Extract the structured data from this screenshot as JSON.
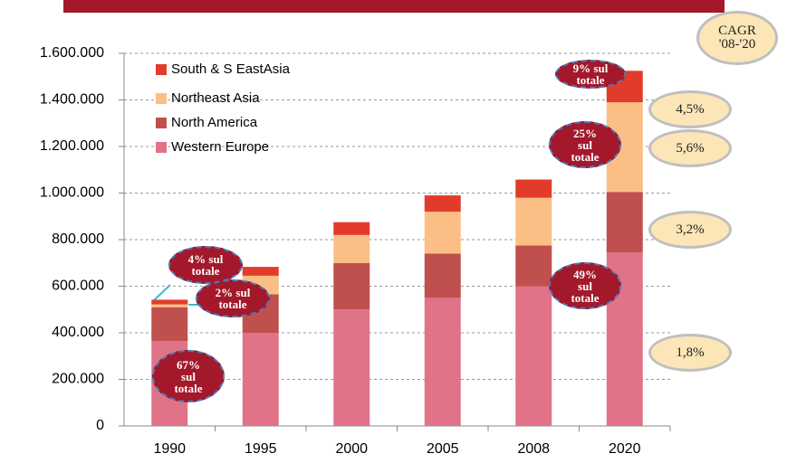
{
  "chart_data": {
    "type": "stacked_bar",
    "categories": [
      "1990",
      "1995",
      "2000",
      "2005",
      "2008",
      "2020"
    ],
    "series": [
      {
        "name": "Western Europe",
        "color": "#e07388",
        "values": [
          365000,
          400000,
          500000,
          550000,
          600000,
          745000
        ]
      },
      {
        "name": "North America",
        "color": "#c0504d",
        "values": [
          145000,
          165000,
          200000,
          190000,
          175000,
          260000
        ]
      },
      {
        "name": "Northeast Asia",
        "color": "#fbbf85",
        "values": [
          12000,
          80000,
          120000,
          180000,
          205000,
          385000
        ]
      },
      {
        "name": "South & S EastAsia",
        "color": "#e33b2b",
        "values": [
          20000,
          38000,
          55000,
          70000,
          78000,
          135000
        ]
      }
    ],
    "ylim": [
      0,
      1600000
    ],
    "yticks": [
      0,
      {
        "value": 200000,
        "label": "200.000"
      },
      {
        "value": 400000,
        "label": "400.000"
      },
      {
        "value": 600000,
        "label": "600.000"
      },
      {
        "value": 800000,
        "label": "800.000"
      },
      {
        "value": 1000000,
        "label": "1.000.000"
      },
      {
        "value": 1200000,
        "label": "1.200.000"
      },
      {
        "value": 1400000,
        "label": "1.400.000"
      },
      {
        "value": 1600000,
        "label": "1.600.000"
      }
    ],
    "grid": true,
    "legend": "top-left",
    "annotations": [
      "4% sul totale",
      "2% sul totale",
      "67% sul totale",
      "9% sul totale",
      "25% sul totale",
      "49% sul totale",
      "CAGR '08-'20",
      "4,5%",
      "5,6%",
      "3,2%",
      "1,8%"
    ]
  }
}
